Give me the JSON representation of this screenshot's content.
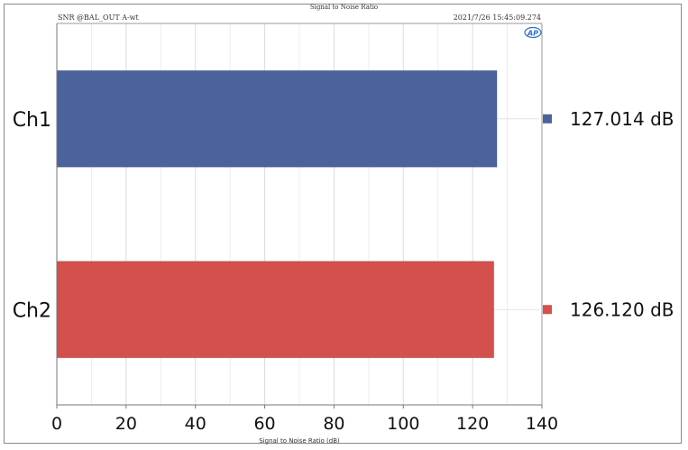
{
  "chart_data": {
    "type": "bar",
    "orientation": "horizontal",
    "title": "Signal to Noise Ratio",
    "header_left": "SNR @BAL_OUT A-wt",
    "header_right": "2021/7/26 15:45:09.274",
    "logo_text": "AP",
    "xlabel": "Signal to Noise Ratio (dB)",
    "xlim": [
      0,
      140
    ],
    "xticks": [
      0,
      20,
      40,
      60,
      80,
      100,
      120,
      140
    ],
    "categories": [
      "Ch1",
      "Ch2"
    ],
    "values": [
      127.014,
      126.12
    ],
    "value_labels": [
      "127.014 dB",
      "126.120 dB"
    ],
    "colors": [
      "#4a639c",
      "#d4504c"
    ],
    "legend_placement": "right",
    "grid": true
  }
}
